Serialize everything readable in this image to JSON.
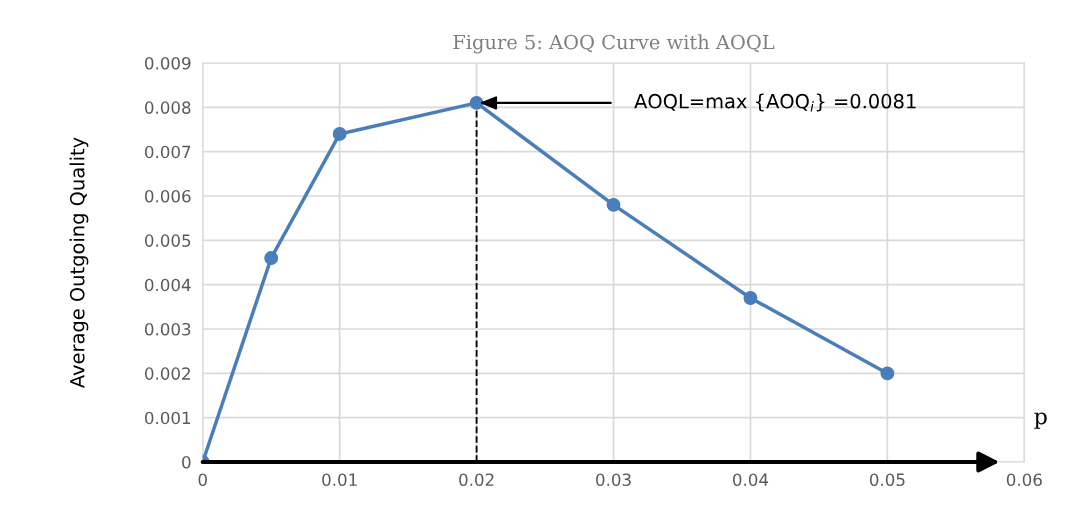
{
  "chart_data": {
    "type": "line",
    "title": "Figure 5: AOQ Curve with AOQL",
    "xlabel": "p",
    "ylabel": "Average Outgoing Quality",
    "x": [
      0,
      0.005,
      0.01,
      0.02,
      0.03,
      0.04,
      0.05
    ],
    "series": [
      {
        "color": "#4a7ebb",
        "values": [
          0,
          0.0046,
          0.0074,
          0.0081,
          0.0058,
          0.0037,
          0.002
        ]
      }
    ],
    "xlim": [
      0,
      0.06
    ],
    "xticks": [
      0,
      0.01,
      0.02,
      0.03,
      0.04,
      0.05,
      0.06
    ],
    "ylim": [
      0,
      0.009
    ],
    "yticks": [
      0,
      0.001,
      0.002,
      0.003,
      0.004,
      0.005,
      0.006,
      0.007,
      0.008,
      0.009
    ],
    "annotations": [
      {
        "text": "AOQL=max {AOQ$_{i}$} =0.0081",
        "x": 0.02,
        "y": 0.0081
      }
    ],
    "ref_lines": [
      {
        "axis": "x",
        "value": 0.02,
        "color": "#000000",
        "line_style": "dashed"
      }
    ],
    "grid": true,
    "marker": "circle",
    "line_style": "solid",
    "legend": false
  }
}
